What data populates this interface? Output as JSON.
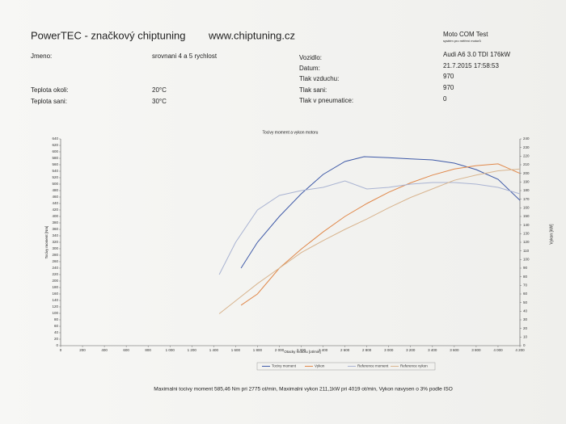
{
  "header": {
    "title": "PowerTEC - značkový chiptuning",
    "website": "www.chiptuning.cz",
    "system": "Moto COM Test",
    "system_subtitle": "systém pro měření motorů"
  },
  "fields": {
    "name_label": "Jmeno:",
    "name": "srovnani 4 a 5 rychlost",
    "ambient_label": "Teplota okoli:",
    "ambient": "20°C",
    "intake_temp_label": "Teplota sani:",
    "intake_temp": "30°C",
    "vehicle_label": "Vozidlo:",
    "vehicle": "Audi A6 3.0 TDI 176kW",
    "date_label": "Datum:",
    "date": "21.7.2015 17:58:53",
    "air_pressure_label": "Tlak vzduchu:",
    "air_pressure": 970,
    "intake_pressure_label": "Tlak sani:",
    "intake_pressure": 970,
    "tyre_pressure_label": "Tlak v pneumatice:",
    "tyre_pressure": 0
  },
  "chart_data": {
    "type": "line",
    "title": "Tocivy moment a vykon motoru",
    "x_label": "Otacky motoru [ot/min]",
    "y_label": "Tocivy moment [Nm]",
    "y2_label": "Vykon [kW]",
    "xlim": [
      0,
      4200
    ],
    "xticks": [
      0,
      200,
      400,
      600,
      800,
      {
        "value": 1000,
        "label": "1 000"
      },
      {
        "value": 1200,
        "label": "1 200"
      },
      {
        "value": 1400,
        "label": "1 400"
      },
      {
        "value": 1600,
        "label": "1 600"
      },
      {
        "value": 1800,
        "label": "1 800"
      },
      {
        "value": 2000,
        "label": "2 000"
      },
      {
        "value": 2200,
        "label": "2 200"
      },
      {
        "value": 2400,
        "label": "2 400"
      },
      {
        "value": 2600,
        "label": "2 600"
      },
      {
        "value": 2800,
        "label": "2 800"
      },
      {
        "value": 3000,
        "label": "3 000"
      },
      {
        "value": 3200,
        "label": "3 200"
      },
      {
        "value": 3400,
        "label": "3 400"
      },
      {
        "value": 3600,
        "label": "3 600"
      },
      {
        "value": 3800,
        "label": "3 800"
      },
      {
        "value": 4000,
        "label": "4 000"
      },
      {
        "value": 4200,
        "label": "4 200"
      }
    ],
    "ylim": [
      0,
      640
    ],
    "yticks": [
      0,
      20,
      40,
      60,
      80,
      100,
      120,
      140,
      160,
      180,
      200,
      220,
      240,
      260,
      280,
      300,
      320,
      340,
      360,
      380,
      400,
      420,
      440,
      460,
      480,
      500,
      520,
      540,
      560,
      580,
      600,
      620,
      640
    ],
    "y2lim": [
      0,
      240
    ],
    "y2ticks": [
      0,
      10,
      20,
      30,
      40,
      50,
      60,
      70,
      80,
      90,
      100,
      110,
      120,
      130,
      140,
      150,
      160,
      170,
      180,
      190,
      200,
      210,
      220,
      230,
      240
    ],
    "grid": false,
    "legend": "bottom",
    "series": [
      {
        "name": "Tocivy moment",
        "color": "#3f5aa8",
        "x": [
          1650,
          1800,
          2000,
          2200,
          2400,
          2600,
          2775,
          3000,
          3200,
          3400,
          3600,
          3800,
          4000,
          4200
        ],
        "values": [
          240,
          320,
          400,
          470,
          530,
          570,
          585,
          582,
          578,
          575,
          565,
          545,
          515,
          450
        ]
      },
      {
        "name": "Vykon",
        "color": "#e0884a",
        "axis": "y2",
        "x": [
          1650,
          1800,
          2000,
          2200,
          2400,
          2600,
          2800,
          3000,
          3200,
          3400,
          3600,
          3800,
          4000,
          4200
        ],
        "values": [
          47,
          60,
          90,
          112,
          132,
          150,
          165,
          178,
          189,
          198,
          205,
          209,
          211,
          200
        ]
      },
      {
        "name": "Reference moment",
        "color": "#a9b3d2",
        "x": [
          1450,
          1600,
          1800,
          2000,
          2200,
          2400,
          2600,
          2800,
          3000,
          3200,
          3400,
          3600,
          3800,
          4000,
          4200
        ],
        "values": [
          220,
          320,
          420,
          465,
          480,
          490,
          510,
          485,
          490,
          500,
          505,
          505,
          500,
          490,
          470
        ]
      },
      {
        "name": "Reference vykon",
        "color": "#d8b48e",
        "axis": "y2",
        "x": [
          1450,
          1600,
          1800,
          2000,
          2200,
          2400,
          2600,
          2800,
          3000,
          3200,
          3400,
          3600,
          3800,
          4000,
          4200
        ],
        "values": [
          37,
          52,
          72,
          90,
          108,
          122,
          135,
          147,
          160,
          172,
          182,
          192,
          198,
          203,
          205
        ]
      }
    ],
    "annotation": "Maximalni tocivy moment 585,46 Nm pri 2775 ot/min,  Maximalni vykon 211,1kW pri 4019 ot/min,  Vykon navysen o 3% podle ISO"
  }
}
